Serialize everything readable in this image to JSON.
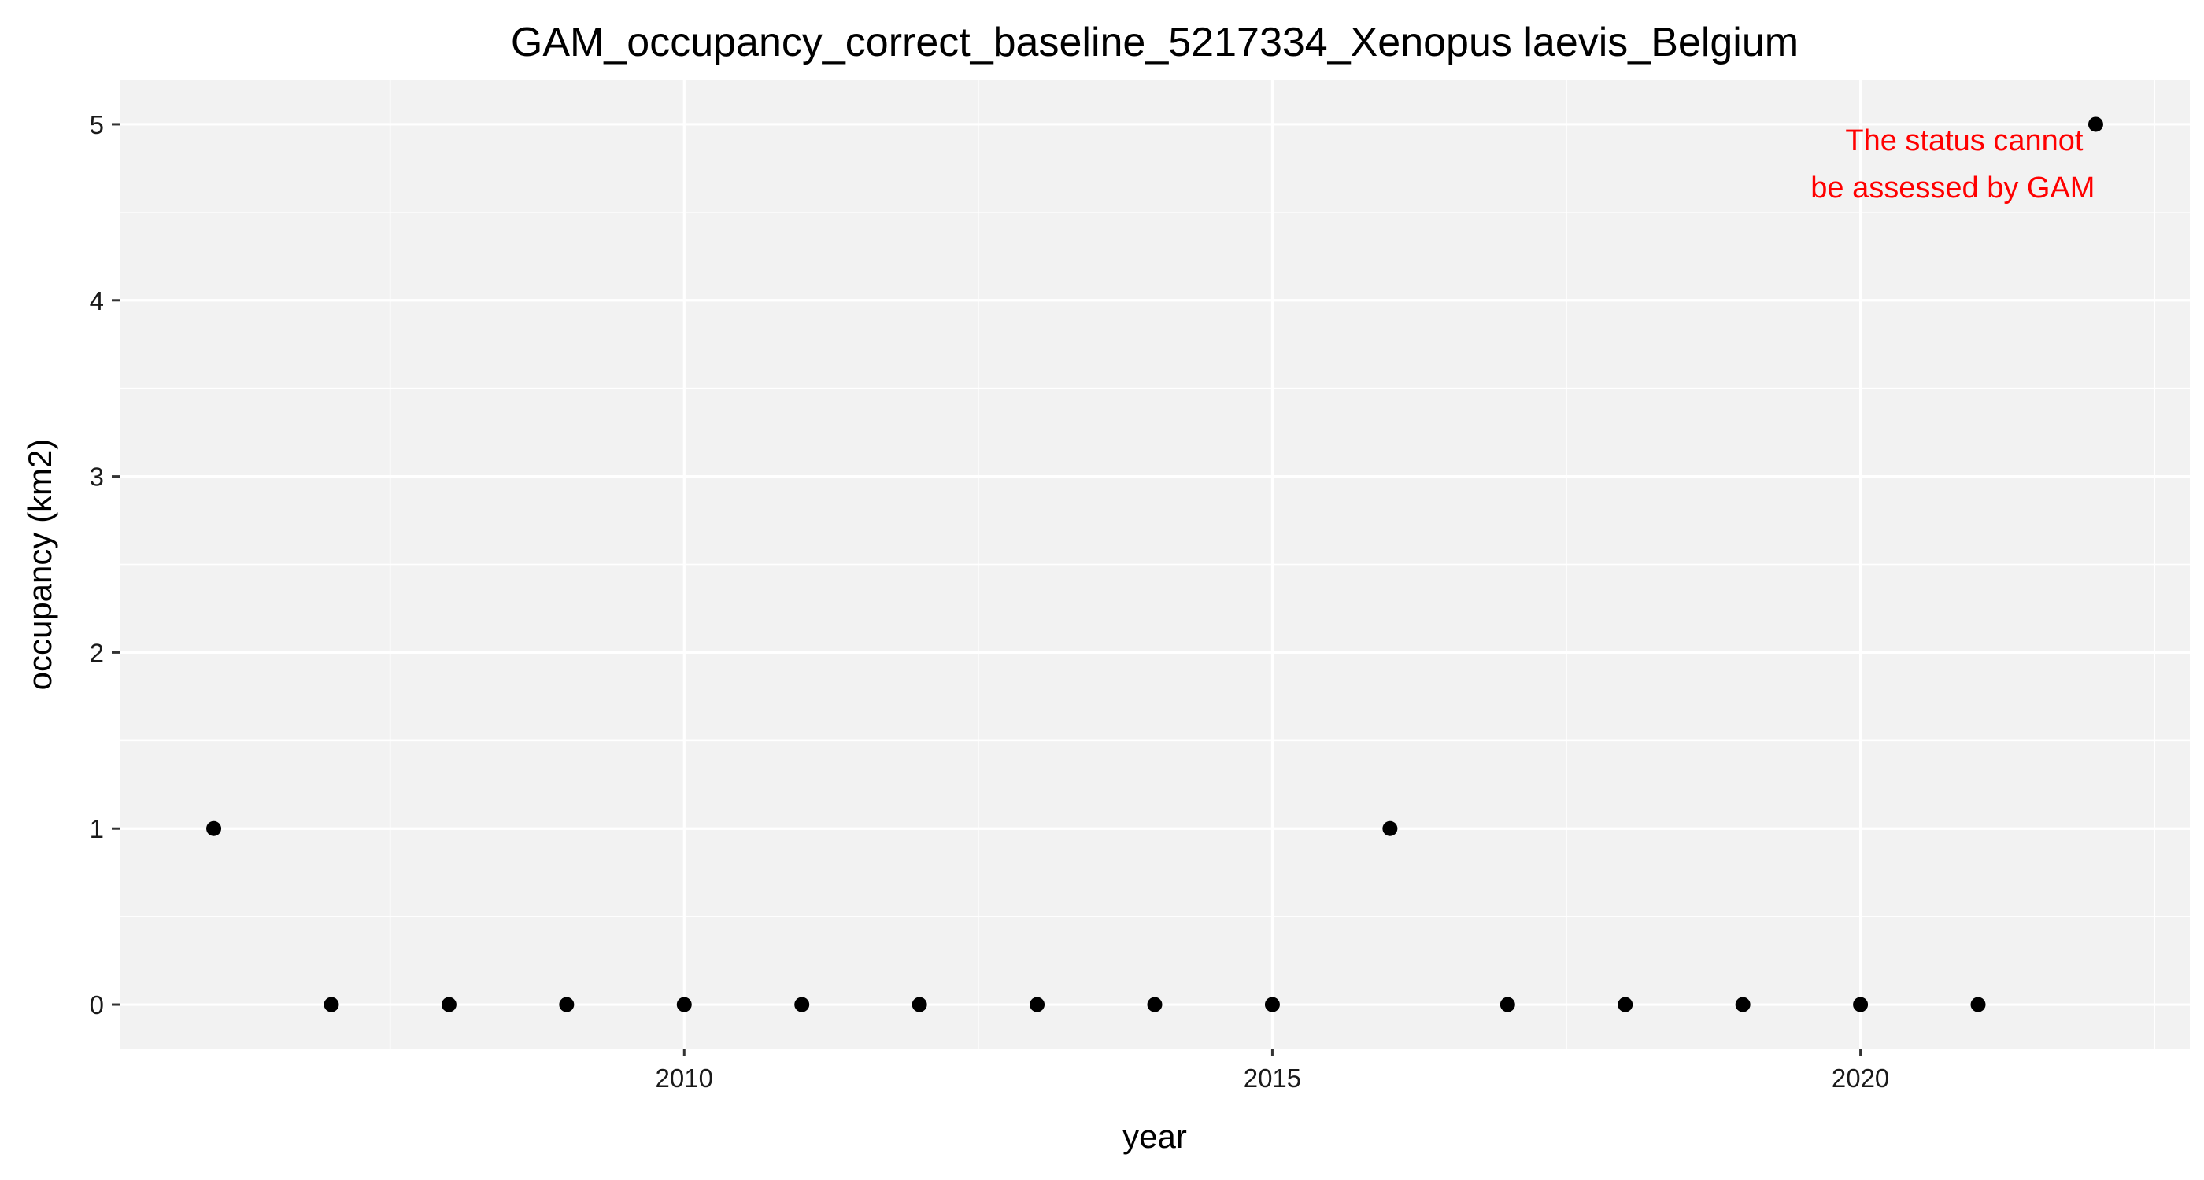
{
  "chart_data": {
    "type": "scatter",
    "title": "GAM_occupancy_correct_baseline_5217334_Xenopus laevis_Belgium",
    "xlabel": "year",
    "ylabel": "occupancy (km2)",
    "x": [
      2006,
      2007,
      2008,
      2009,
      2010,
      2011,
      2012,
      2013,
      2014,
      2015,
      2016,
      2017,
      2018,
      2019,
      2020,
      2021,
      2022
    ],
    "y": [
      1,
      0,
      0,
      0,
      0,
      0,
      0,
      0,
      0,
      0,
      1,
      0,
      0,
      0,
      0,
      0,
      5
    ],
    "xlim": [
      2005.2,
      2022.8
    ],
    "ylim": [
      -0.25,
      5.25
    ],
    "x_ticks": [
      2010,
      2015,
      2020
    ],
    "x_tick_labels": [
      "2010",
      "2015",
      "2020"
    ],
    "x_minor_ticks": [
      2007.5,
      2012.5,
      2017.5,
      2022.5
    ],
    "y_ticks": [
      0,
      1,
      2,
      3,
      4,
      5
    ],
    "y_tick_labels": [
      "0",
      "1",
      "2",
      "3",
      "4",
      "5"
    ],
    "y_minor_ticks": [
      0.5,
      1.5,
      2.5,
      3.5,
      4.5
    ],
    "grid": true,
    "legend": "none",
    "annotation": {
      "lines": [
        "The status cannot",
        "be assessed by GAM"
      ],
      "color": "#ff0000",
      "anchor_x": 2022,
      "anchor_y": 5
    },
    "colors": {
      "panel_background": "#f2f2f2",
      "grid": "#ffffff",
      "point": "#000000",
      "annotation": "#ff0000"
    }
  }
}
